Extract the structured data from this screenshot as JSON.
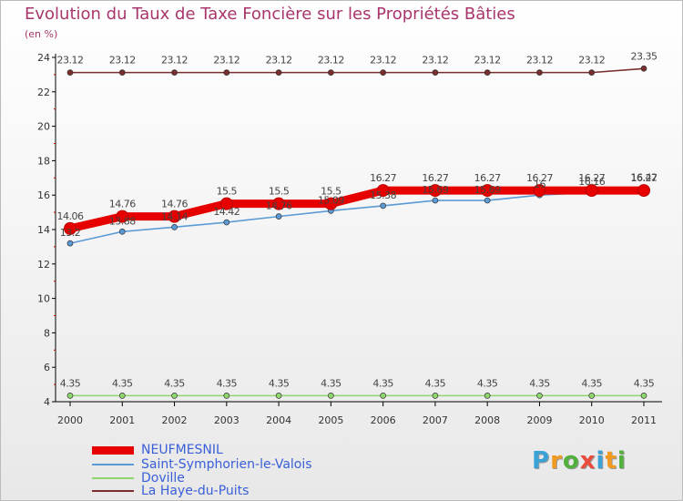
{
  "title": "Evolution du Taux de Taxe Foncière sur les Propriétés Bâties",
  "unit": "(en %)",
  "logo": {
    "text": "Proxiti",
    "colors": [
      "#3aa2d6",
      "#f19a1f",
      "#52b03d",
      "#e94b3c",
      "#3aa2d6",
      "#f19a1f",
      "#52b03d"
    ]
  },
  "chart_data": {
    "type": "line",
    "title": "Evolution du Taux de Taxe Foncière sur les Propriétés Bâties",
    "ylabel": "(en %)",
    "xlabel": "",
    "ylim": [
      4,
      24
    ],
    "y_ticks": [
      "4",
      "6",
      "8",
      "10",
      "12",
      "14",
      "16",
      "18",
      "20",
      "22",
      "24"
    ],
    "categories": [
      "2000",
      "2001",
      "2002",
      "2003",
      "2004",
      "2005",
      "2006",
      "2007",
      "2008",
      "2009",
      "2010",
      "2011"
    ],
    "series": [
      {
        "name": "NEUFMESNIL",
        "color": "#e60000",
        "thick": true,
        "values": [
          14.06,
          14.76,
          14.76,
          15.5,
          15.5,
          15.5,
          16.27,
          16.27,
          16.27,
          16.27,
          16.27,
          16.27
        ],
        "labels": [
          "14.06",
          "14.76",
          "14.76",
          "15.5",
          "15.5",
          "15.5",
          "16.27",
          "16.27",
          "16.27",
          "16.27",
          "16.27",
          "16.27"
        ]
      },
      {
        "name": "Saint-Symphorien-le-Valois",
        "color": "#5b9bd5",
        "thick": false,
        "values": [
          13.2,
          13.88,
          14.14,
          14.42,
          14.76,
          15.09,
          15.38,
          15.69,
          15.69,
          16.0,
          16.16,
          16.42
        ],
        "labels": [
          "13.2",
          "13.88",
          "14.14",
          "14.42",
          "14.76",
          "15.09",
          "15.38",
          "15.69",
          "15.69",
          "16",
          "16.16",
          "16.42"
        ]
      },
      {
        "name": "Doville",
        "color": "#8fd66f",
        "thick": false,
        "values": [
          4.35,
          4.35,
          4.35,
          4.35,
          4.35,
          4.35,
          4.35,
          4.35,
          4.35,
          4.35,
          4.35,
          4.35
        ],
        "labels": [
          "4.35",
          "4.35",
          "4.35",
          "4.35",
          "4.35",
          "4.35",
          "4.35",
          "4.35",
          "4.35",
          "4.35",
          "4.35",
          "4.35"
        ]
      },
      {
        "name": "La Haye-du-Puits",
        "color": "#7a2e2e",
        "thick": false,
        "values": [
          23.12,
          23.12,
          23.12,
          23.12,
          23.12,
          23.12,
          23.12,
          23.12,
          23.12,
          23.12,
          23.12,
          23.35
        ],
        "labels": [
          "23.12",
          "23.12",
          "23.12",
          "23.12",
          "23.12",
          "23.12",
          "23.12",
          "23.12",
          "23.12",
          "23.12",
          "23.12",
          "23.35"
        ]
      }
    ]
  }
}
